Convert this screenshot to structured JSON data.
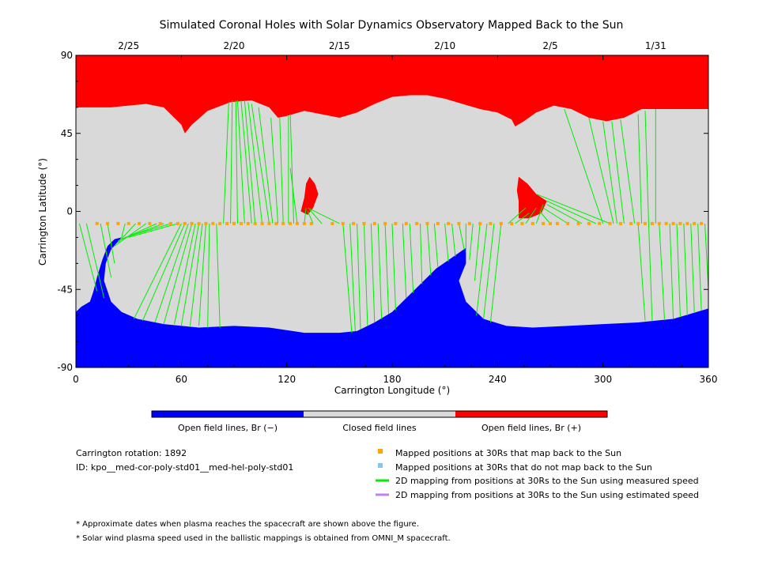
{
  "chart_data": {
    "type": "map",
    "title": "Simulated Coronal Holes with Solar Dynamics Observatory Mapped Back to the Sun",
    "xlabel": "Carrington Longitude (°)",
    "ylabel": "Carrington Latitude (°)",
    "xlim": [
      0,
      360
    ],
    "ylim": [
      -90,
      90
    ],
    "x_ticks": [
      "0",
      "60",
      "120",
      "180",
      "240",
      "300",
      "360"
    ],
    "y_ticks": [
      "90",
      "45",
      "0",
      "-45",
      "-90"
    ],
    "date_ticks": [
      {
        "label": "2/25",
        "lon": 30
      },
      {
        "label": "2/20",
        "lon": 90
      },
      {
        "label": "2/15",
        "lon": 150
      },
      {
        "label": "2/10",
        "lon": 210
      },
      {
        "label": "2/5",
        "lon": 270
      },
      {
        "label": "1/31",
        "lon": 330
      }
    ],
    "colors": {
      "open_negative": "#0000ff",
      "closed": "#d9d9d9",
      "open_positive": "#ff0000",
      "mapped_back": "#ffa500",
      "not_mapped_back": "#88c4f0",
      "measured_speed": "#00ee00",
      "estimated_speed": "#c080f0"
    },
    "north_boundary": [
      [
        0,
        60
      ],
      [
        10,
        60
      ],
      [
        20,
        60
      ],
      [
        30,
        61
      ],
      [
        40,
        62
      ],
      [
        50,
        60
      ],
      [
        60,
        50
      ],
      [
        62,
        45
      ],
      [
        66,
        50
      ],
      [
        75,
        58
      ],
      [
        88,
        63
      ],
      [
        100,
        64
      ],
      [
        110,
        60
      ],
      [
        115,
        54
      ],
      [
        120,
        55
      ],
      [
        130,
        58
      ],
      [
        140,
        56
      ],
      [
        150,
        54
      ],
      [
        160,
        57
      ],
      [
        170,
        62
      ],
      [
        180,
        66
      ],
      [
        190,
        67
      ],
      [
        200,
        67
      ],
      [
        210,
        65
      ],
      [
        220,
        62
      ],
      [
        230,
        59
      ],
      [
        240,
        57
      ],
      [
        248,
        53
      ],
      [
        250,
        49
      ],
      [
        255,
        52
      ],
      [
        262,
        57
      ],
      [
        272,
        61
      ],
      [
        282,
        59
      ],
      [
        292,
        54
      ],
      [
        302,
        52
      ],
      [
        312,
        54
      ],
      [
        322,
        59
      ],
      [
        332,
        59
      ],
      [
        345,
        59
      ],
      [
        355,
        59
      ],
      [
        360,
        59
      ]
    ],
    "south_boundary": [
      [
        0,
        -58
      ],
      [
        3,
        -55
      ],
      [
        8,
        -52
      ],
      [
        10,
        -46
      ],
      [
        12,
        -38
      ],
      [
        15,
        -28
      ],
      [
        18,
        -20
      ],
      [
        22,
        -16
      ],
      [
        26,
        -15
      ],
      [
        20,
        -22
      ],
      [
        17,
        -30
      ],
      [
        16,
        -40
      ],
      [
        20,
        -52
      ],
      [
        26,
        -58
      ],
      [
        35,
        -62
      ],
      [
        50,
        -65
      ],
      [
        70,
        -67
      ],
      [
        90,
        -66
      ],
      [
        110,
        -67
      ],
      [
        130,
        -70
      ],
      [
        150,
        -70
      ],
      [
        160,
        -69
      ],
      [
        170,
        -64
      ],
      [
        180,
        -58
      ],
      [
        190,
        -48
      ],
      [
        200,
        -38
      ],
      [
        205,
        -33
      ],
      [
        215,
        -26
      ],
      [
        222,
        -21
      ],
      [
        222,
        -30
      ],
      [
        218,
        -40
      ],
      [
        222,
        -52
      ],
      [
        232,
        -62
      ],
      [
        245,
        -66
      ],
      [
        260,
        -67
      ],
      [
        280,
        -66
      ],
      [
        300,
        -65
      ],
      [
        320,
        -64
      ],
      [
        340,
        -62
      ],
      [
        350,
        -59
      ],
      [
        360,
        -56
      ]
    ],
    "positive_lobes": [
      [
        [
          128,
          0
        ],
        [
          130,
          8
        ],
        [
          131,
          16
        ],
        [
          133,
          20
        ],
        [
          136,
          16
        ],
        [
          138,
          10
        ],
        [
          135,
          2
        ],
        [
          132,
          -2
        ]
      ],
      [
        [
          252,
          -4
        ],
        [
          252,
          6
        ],
        [
          251,
          12
        ],
        [
          252,
          20
        ],
        [
          257,
          16
        ],
        [
          262,
          10
        ],
        [
          268,
          6
        ],
        [
          265,
          -1
        ],
        [
          258,
          -4
        ]
      ]
    ],
    "mapped_positions_lat": -7,
    "mapped_positions_lon": [
      12,
      18,
      24,
      30,
      36,
      42,
      48,
      54,
      58,
      62,
      66,
      70,
      74,
      78,
      82,
      86,
      90,
      94,
      98,
      102,
      106,
      110,
      114,
      118,
      122,
      126,
      130,
      134,
      146,
      152,
      158,
      164,
      170,
      176,
      182,
      188,
      194,
      200,
      206,
      212,
      218,
      224,
      230,
      236,
      242,
      248,
      254,
      260,
      266,
      270,
      274,
      280,
      286,
      292,
      298,
      304,
      310,
      316,
      320,
      324,
      328,
      332,
      336,
      340,
      344,
      348,
      352,
      356
    ],
    "fieldlines": [
      [
        [
          2,
          -7
        ],
        [
          12,
          -46
        ]
      ],
      [
        [
          6,
          -7
        ],
        [
          16,
          -50
        ]
      ],
      [
        [
          14,
          -7
        ],
        [
          20,
          -38
        ]
      ],
      [
        [
          18,
          -7
        ],
        [
          22,
          -30
        ]
      ],
      [
        [
          28,
          -7
        ],
        [
          26,
          -15
        ]
      ],
      [
        [
          34,
          -7
        ],
        [
          24,
          -18
        ]
      ],
      [
        [
          40,
          -7
        ],
        [
          22,
          -20
        ]
      ],
      [
        [
          46,
          -7
        ],
        [
          24,
          -17
        ]
      ],
      [
        [
          50,
          -7
        ],
        [
          26,
          -16
        ]
      ],
      [
        [
          54,
          -7
        ],
        [
          28,
          -15
        ]
      ],
      [
        [
          58,
          -7
        ],
        [
          30,
          -15
        ]
      ],
      [
        [
          60,
          -7
        ],
        [
          33,
          -62
        ]
      ],
      [
        [
          62,
          -7
        ],
        [
          38,
          -63
        ]
      ],
      [
        [
          64,
          -7
        ],
        [
          45,
          -64
        ]
      ],
      [
        [
          66,
          -7
        ],
        [
          50,
          -65
        ]
      ],
      [
        [
          68,
          -7
        ],
        [
          56,
          -65
        ]
      ],
      [
        [
          70,
          -7
        ],
        [
          60,
          -66
        ]
      ],
      [
        [
          72,
          -7
        ],
        [
          65,
          -66
        ]
      ],
      [
        [
          74,
          -7
        ],
        [
          70,
          -66
        ]
      ],
      [
        [
          76,
          -7
        ],
        [
          75,
          -67
        ]
      ],
      [
        [
          80,
          -7
        ],
        [
          82,
          -67
        ]
      ],
      [
        [
          84,
          -7
        ],
        [
          87,
          63
        ]
      ],
      [
        [
          88,
          -7
        ],
        [
          89,
          64
        ]
      ],
      [
        [
          92,
          -7
        ],
        [
          91,
          64
        ]
      ],
      [
        [
          96,
          -7
        ],
        [
          92,
          64
        ]
      ],
      [
        [
          100,
          -7
        ],
        [
          94,
          64
        ]
      ],
      [
        [
          102,
          -7
        ],
        [
          96,
          64
        ]
      ],
      [
        [
          106,
          -7
        ],
        [
          98,
          63
        ]
      ],
      [
        [
          110,
          -7
        ],
        [
          100,
          62
        ]
      ],
      [
        [
          112,
          -7
        ],
        [
          104,
          60
        ]
      ],
      [
        [
          115,
          -7
        ],
        [
          111,
          54
        ]
      ],
      [
        [
          118,
          -7
        ],
        [
          116,
          54
        ]
      ],
      [
        [
          121,
          -7
        ],
        [
          121,
          55
        ]
      ],
      [
        [
          124,
          -7
        ],
        [
          122,
          56
        ]
      ],
      [
        [
          126,
          -7
        ],
        [
          122,
          25
        ]
      ],
      [
        [
          130,
          -7
        ],
        [
          131,
          2
        ]
      ],
      [
        [
          135,
          -7
        ],
        [
          132,
          0
        ]
      ],
      [
        [
          140,
          -7
        ],
        [
          133,
          1
        ]
      ],
      [
        [
          150,
          -7
        ],
        [
          132,
          2
        ]
      ],
      [
        [
          152,
          -7
        ],
        [
          157,
          -70
        ]
      ],
      [
        [
          156,
          -7
        ],
        [
          159,
          -69
        ]
      ],
      [
        [
          160,
          -7
        ],
        [
          162,
          -68
        ]
      ],
      [
        [
          164,
          -7
        ],
        [
          166,
          -66
        ]
      ],
      [
        [
          168,
          -7
        ],
        [
          170,
          -64
        ]
      ],
      [
        [
          172,
          -7
        ],
        [
          174,
          -62
        ]
      ],
      [
        [
          176,
          -7
        ],
        [
          178,
          -59
        ]
      ],
      [
        [
          180,
          -7
        ],
        [
          182,
          -57
        ]
      ],
      [
        [
          186,
          -7
        ],
        [
          188,
          -50
        ]
      ],
      [
        [
          190,
          -7
        ],
        [
          192,
          -47
        ]
      ],
      [
        [
          196,
          -7
        ],
        [
          197,
          -42
        ]
      ],
      [
        [
          200,
          -7
        ],
        [
          202,
          -37
        ]
      ],
      [
        [
          204,
          -7
        ],
        [
          206,
          -32
        ]
      ],
      [
        [
          210,
          -7
        ],
        [
          212,
          -29
        ]
      ],
      [
        [
          214,
          -7
        ],
        [
          216,
          -26
        ]
      ],
      [
        [
          218,
          -7
        ],
        [
          221,
          -22
        ]
      ],
      [
        [
          222,
          -7
        ],
        [
          222,
          -24
        ]
      ],
      [
        [
          226,
          -7
        ],
        [
          224,
          -28
        ]
      ],
      [
        [
          230,
          -7
        ],
        [
          227,
          -40
        ]
      ],
      [
        [
          234,
          -7
        ],
        [
          228,
          -60
        ]
      ],
      [
        [
          238,
          -7
        ],
        [
          232,
          -62
        ]
      ],
      [
        [
          242,
          -7
        ],
        [
          236,
          -64
        ]
      ],
      [
        [
          246,
          -7
        ],
        [
          256,
          2
        ]
      ],
      [
        [
          250,
          -7
        ],
        [
          258,
          -1
        ]
      ],
      [
        [
          256,
          -7
        ],
        [
          262,
          2
        ]
      ],
      [
        [
          262,
          -7
        ],
        [
          266,
          4
        ]
      ],
      [
        [
          270,
          -7
        ],
        [
          264,
          0
        ]
      ],
      [
        [
          280,
          -7
        ],
        [
          266,
          2
        ]
      ],
      [
        [
          288,
          -7
        ],
        [
          268,
          4
        ]
      ],
      [
        [
          296,
          -7
        ],
        [
          268,
          6
        ]
      ],
      [
        [
          304,
          -7
        ],
        [
          262,
          10
        ]
      ],
      [
        [
          300,
          -7
        ],
        [
          278,
          59
        ]
      ],
      [
        [
          306,
          -7
        ],
        [
          292,
          54
        ]
      ],
      [
        [
          308,
          -7
        ],
        [
          300,
          52
        ]
      ],
      [
        [
          312,
          -7
        ],
        [
          305,
          52
        ]
      ],
      [
        [
          318,
          -7
        ],
        [
          310,
          53
        ]
      ],
      [
        [
          322,
          -7
        ],
        [
          320,
          56
        ]
      ],
      [
        [
          326,
          -7
        ],
        [
          324,
          58
        ]
      ],
      [
        [
          330,
          -7
        ],
        [
          330,
          59
        ]
      ],
      [
        [
          320,
          -7
        ],
        [
          324,
          -63
        ]
      ],
      [
        [
          326,
          -7
        ],
        [
          328,
          -63
        ]
      ],
      [
        [
          332,
          -7
        ],
        [
          335,
          -62
        ]
      ],
      [
        [
          338,
          -7
        ],
        [
          340,
          -62
        ]
      ],
      [
        [
          342,
          -7
        ],
        [
          344,
          -61
        ]
      ],
      [
        [
          346,
          -7
        ],
        [
          348,
          -60
        ]
      ],
      [
        [
          350,
          -7
        ],
        [
          352,
          -58
        ]
      ],
      [
        [
          354,
          -7
        ],
        [
          356,
          -57
        ]
      ],
      [
        [
          358,
          -7
        ],
        [
          360,
          -45
        ]
      ]
    ]
  },
  "colorbar": {
    "label_negative": "Open field lines, Br (−)",
    "label_closed": "Closed field lines",
    "label_positive": "Open field lines, Br (+)"
  },
  "info": {
    "rotation": "Carrington rotation: 1892",
    "id": "ID: kpo__med-cor-poly-std01__med-hel-poly-std01"
  },
  "legend": {
    "mapped_back": "Mapped positions at 30Rs that map back to the Sun",
    "not_mapped_back": "Mapped positions at 30Rs that do not map back to the Sun",
    "measured_speed": "2D mapping from positions at 30Rs to the Sun using measured speed",
    "estimated_speed": "2D mapping from positions at 30Rs to the Sun using estimated speed"
  },
  "notes": {
    "dates": "* Approximate dates when plasma reaches the spacecraft are shown above the figure.",
    "speed": "* Solar wind plasma speed used in the ballistic mappings is obtained from OMNI_M spacecraft."
  }
}
